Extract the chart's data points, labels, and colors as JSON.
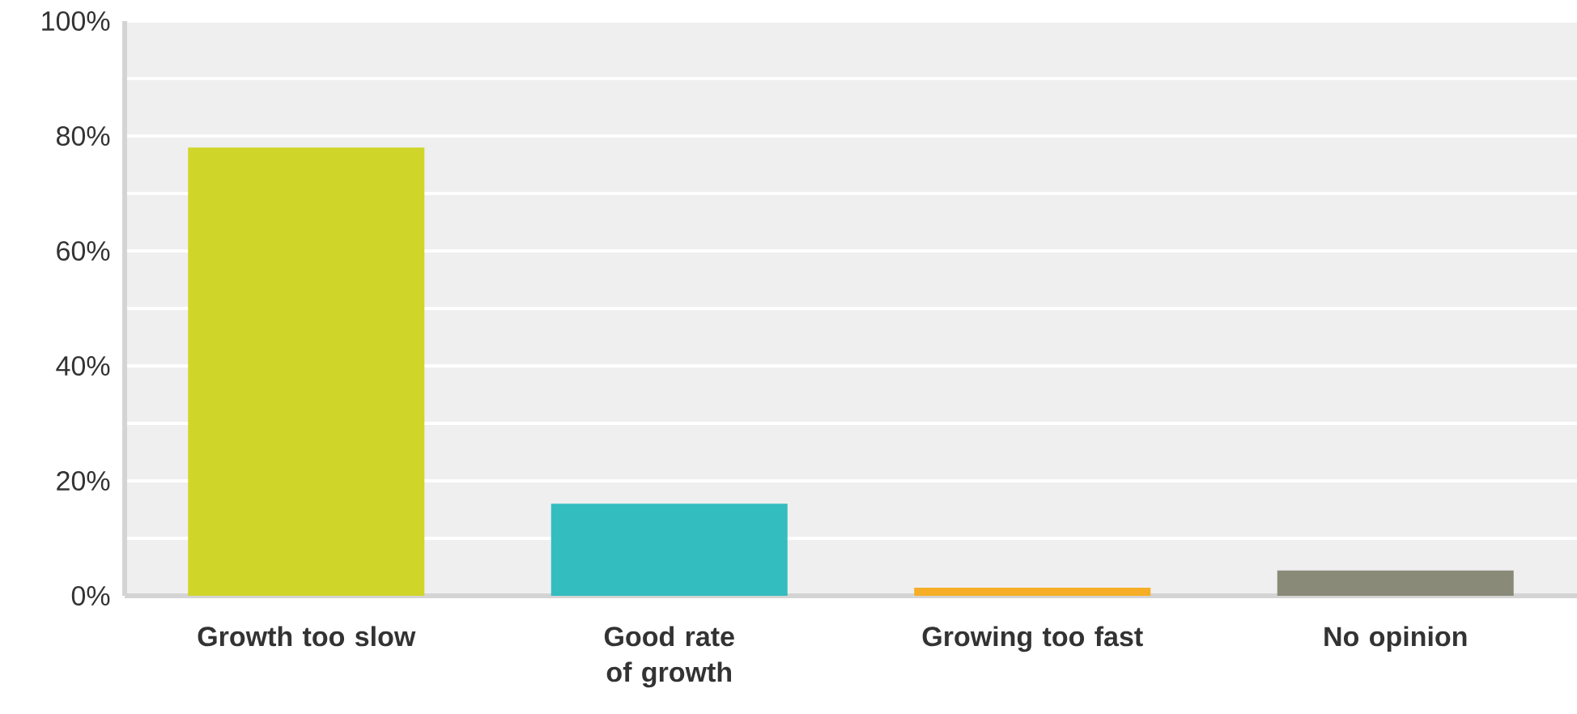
{
  "chart_data": {
    "type": "bar",
    "categories": [
      "Growth too slow",
      "Good rate of growth",
      "Growing too fast",
      "No opinion"
    ],
    "values": [
      78,
      16,
      1.4,
      4.4
    ],
    "colors": [
      "#d0d52a",
      "#34bdbf",
      "#f5ae25",
      "#8a8a79"
    ],
    "ylim": [
      0,
      100
    ],
    "yticks": [
      {
        "value": 0,
        "label": "0%"
      },
      {
        "value": 10,
        "label": null
      },
      {
        "value": 20,
        "label": "20%"
      },
      {
        "value": 30,
        "label": null
      },
      {
        "value": 40,
        "label": "40%"
      },
      {
        "value": 50,
        "label": null
      },
      {
        "value": 60,
        "label": "60%"
      },
      {
        "value": 70,
        "label": null
      },
      {
        "value": 80,
        "label": "80%"
      },
      {
        "value": 90,
        "label": null
      },
      {
        "value": 100,
        "label": "100%"
      }
    ],
    "grid": "y"
  }
}
